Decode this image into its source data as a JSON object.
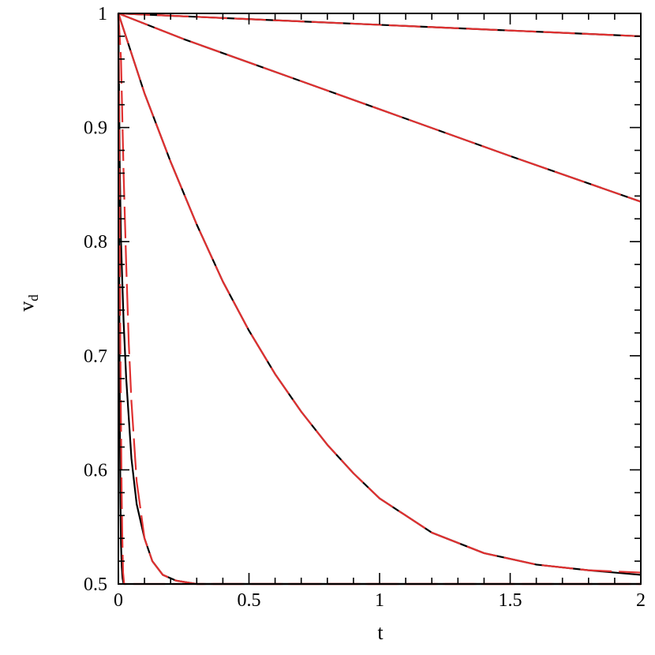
{
  "chart_data": {
    "type": "line",
    "xlabel": "t",
    "ylabel_main": "v",
    "ylabel_sub": "d",
    "xlim": [
      0,
      2
    ],
    "ylim": [
      0.5,
      1
    ],
    "xticks": [
      "0",
      "0.5",
      "1",
      "1.5",
      "2"
    ],
    "yticks": [
      "0.5",
      "0.6",
      "0.7",
      "0.8",
      "0.9",
      "1"
    ],
    "x_tick_values": [
      0,
      0.5,
      1,
      1.5,
      2
    ],
    "y_tick_values": [
      0.5,
      0.6,
      0.7,
      0.8,
      0.9,
      1
    ],
    "grid": false,
    "legend": "none",
    "colors": {
      "solid": "#000000",
      "dashed": "#e03030"
    },
    "series": [
      {
        "style": "solid",
        "values": [
          [
            0,
            1
          ],
          [
            0.25,
            0.9975
          ],
          [
            0.5,
            0.995
          ],
          [
            1,
            0.99
          ],
          [
            1.5,
            0.985
          ],
          [
            2,
            0.98
          ]
        ]
      },
      {
        "style": "dashed",
        "values": [
          [
            0,
            1
          ],
          [
            0.25,
            0.9975
          ],
          [
            0.5,
            0.995
          ],
          [
            1,
            0.99
          ],
          [
            1.5,
            0.985
          ],
          [
            2,
            0.98
          ]
        ]
      },
      {
        "style": "solid",
        "values": [
          [
            0,
            1
          ],
          [
            0.25,
            0.9775
          ],
          [
            0.5,
            0.957
          ],
          [
            1,
            0.916
          ],
          [
            1.5,
            0.875
          ],
          [
            2,
            0.835
          ]
        ]
      },
      {
        "style": "dashed",
        "values": [
          [
            0,
            1
          ],
          [
            0.25,
            0.9775
          ],
          [
            0.5,
            0.957
          ],
          [
            1,
            0.916
          ],
          [
            1.5,
            0.875
          ],
          [
            2,
            0.835
          ]
        ]
      },
      {
        "style": "solid",
        "values": [
          [
            0,
            1
          ],
          [
            0.1,
            0.93
          ],
          [
            0.2,
            0.87
          ],
          [
            0.3,
            0.815
          ],
          [
            0.4,
            0.765
          ],
          [
            0.5,
            0.722
          ],
          [
            0.6,
            0.684
          ],
          [
            0.7,
            0.651
          ],
          [
            0.8,
            0.622
          ],
          [
            0.9,
            0.597
          ],
          [
            1,
            0.575
          ],
          [
            1.2,
            0.545
          ],
          [
            1.4,
            0.527
          ],
          [
            1.6,
            0.517
          ],
          [
            1.8,
            0.512
          ],
          [
            2,
            0.508
          ]
        ]
      },
      {
        "style": "dashed",
        "values": [
          [
            0,
            1
          ],
          [
            0.1,
            0.93
          ],
          [
            0.2,
            0.87
          ],
          [
            0.3,
            0.815
          ],
          [
            0.4,
            0.765
          ],
          [
            0.5,
            0.722
          ],
          [
            0.6,
            0.684
          ],
          [
            0.7,
            0.651
          ],
          [
            0.8,
            0.622
          ],
          [
            0.9,
            0.597
          ],
          [
            1,
            0.575
          ],
          [
            1.2,
            0.545
          ],
          [
            1.4,
            0.527
          ],
          [
            1.6,
            0.517
          ],
          [
            1.8,
            0.512
          ],
          [
            2,
            0.51
          ]
        ]
      },
      {
        "style": "solid",
        "values": [
          [
            0,
            1
          ],
          [
            0.005,
            0.87
          ],
          [
            0.01,
            0.8
          ],
          [
            0.02,
            0.73
          ],
          [
            0.03,
            0.68
          ],
          [
            0.05,
            0.61
          ],
          [
            0.07,
            0.57
          ],
          [
            0.1,
            0.54
          ],
          [
            0.13,
            0.52
          ],
          [
            0.17,
            0.508
          ],
          [
            0.22,
            0.503
          ],
          [
            0.3,
            0.5
          ],
          [
            0.5,
            0.5
          ],
          [
            1,
            0.5
          ],
          [
            1.5,
            0.5
          ],
          [
            2,
            0.5
          ]
        ]
      },
      {
        "style": "dashed",
        "values": [
          [
            0,
            1
          ],
          [
            0.01,
            0.96
          ],
          [
            0.02,
            0.86
          ],
          [
            0.03,
            0.78
          ],
          [
            0.04,
            0.71
          ],
          [
            0.05,
            0.66
          ],
          [
            0.07,
            0.59
          ],
          [
            0.1,
            0.54
          ],
          [
            0.13,
            0.52
          ],
          [
            0.17,
            0.508
          ],
          [
            0.22,
            0.503
          ],
          [
            0.3,
            0.5
          ],
          [
            0.5,
            0.5
          ],
          [
            1,
            0.5
          ],
          [
            1.5,
            0.5
          ],
          [
            2,
            0.5
          ]
        ]
      },
      {
        "style": "solid",
        "values": [
          [
            0,
            1
          ],
          [
            0.002,
            0.85
          ],
          [
            0.004,
            0.72
          ],
          [
            0.006,
            0.63
          ],
          [
            0.008,
            0.57
          ],
          [
            0.01,
            0.535
          ],
          [
            0.013,
            0.515
          ],
          [
            0.016,
            0.505
          ],
          [
            0.02,
            0.5
          ],
          [
            0.1,
            0.5
          ],
          [
            2,
            0.5
          ]
        ]
      },
      {
        "style": "dashed",
        "values": [
          [
            0,
            1
          ],
          [
            0.0025,
            0.92
          ],
          [
            0.005,
            0.81
          ],
          [
            0.0075,
            0.71
          ],
          [
            0.01,
            0.64
          ],
          [
            0.0125,
            0.58
          ],
          [
            0.015,
            0.54
          ],
          [
            0.018,
            0.51
          ],
          [
            0.022,
            0.5
          ],
          [
            0.1,
            0.5
          ],
          [
            2,
            0.5
          ]
        ]
      }
    ]
  }
}
